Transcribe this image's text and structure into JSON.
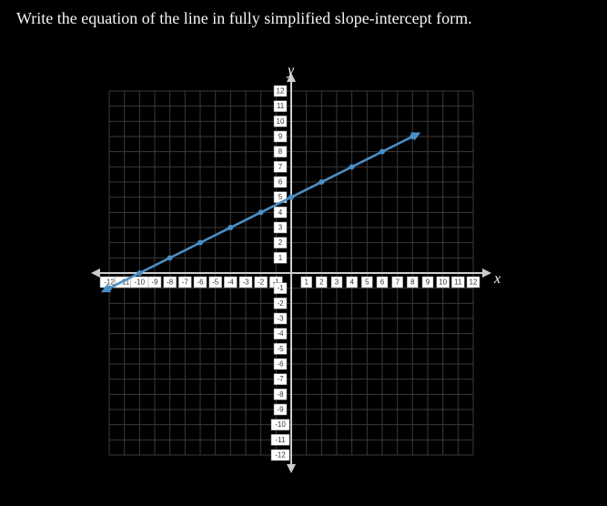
{
  "prompt_text": "Write the equation of the line in fully simplified slope-intercept form.",
  "graph": {
    "type": "line",
    "xlim": [
      -12,
      12
    ],
    "ylim": [
      -12,
      12
    ],
    "tick_step": 1,
    "grid_color": "#3a3a3a",
    "axis_color": "#cccccc",
    "background_color": "#000000",
    "x_label": "x",
    "y_label": "y",
    "axis_label_color": "#ffffff",
    "axis_label_fontsize": 16,
    "tick_box_fill": "#ffffff",
    "tick_text_color": "#333333",
    "tick_fontsize": 8,
    "line": {
      "color": "#4a8fc7",
      "width": 2.5,
      "slope": 0.5,
      "intercept": 5,
      "points": [
        [
          -12,
          -1
        ],
        [
          -10,
          0
        ],
        [
          -8,
          1
        ],
        [
          -6,
          2
        ],
        [
          -4,
          3
        ],
        [
          -2,
          4
        ],
        [
          0,
          5
        ],
        [
          2,
          6
        ],
        [
          4,
          7
        ],
        [
          6,
          8
        ],
        [
          8,
          9
        ]
      ],
      "x_draw_range": [
        -12,
        8
      ],
      "has_arrows": true
    }
  }
}
